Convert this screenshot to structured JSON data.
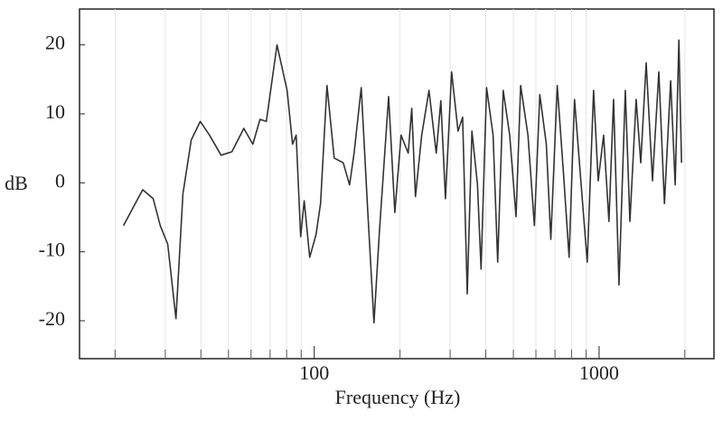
{
  "chart_data": {
    "type": "line",
    "x_label": "Frequency (Hz)",
    "y_label": "dB",
    "xscale": "log",
    "xlim": [
      15,
      2530
    ],
    "ylim": [
      -25.5,
      25.2
    ],
    "xticks": [
      100,
      1000
    ],
    "xminorticks": [
      20,
      30,
      40,
      50,
      60,
      70,
      80,
      90,
      200,
      300,
      400,
      500,
      600,
      700,
      800,
      900,
      2000
    ],
    "yticks": [
      -20,
      -10,
      0,
      10,
      20
    ],
    "series": [
      {
        "color": "#333333",
        "x": [
          21.4,
          25,
          27.2,
          28.8,
          30.6,
          32.7,
          34.6,
          37,
          39.8,
          42.9,
          47.1,
          51.4,
          56.6,
          60.9,
          64.5,
          67.9,
          74,
          80.3,
          83.9,
          86.4,
          89.6,
          92.2,
          96.4,
          101.5,
          105.2,
          110.8,
          117.5,
          126.4,
          133,
          138,
          146.2,
          153.9,
          162,
          169.5,
          182.4,
          191.8,
          201.8,
          213.8,
          220,
          226.6,
          238.4,
          252.8,
          268,
          278.3,
          288.8,
          303.5,
          319.7,
          331.9,
          344.5,
          357.7,
          374,
          385.2,
          402.8,
          424.4,
          440.6,
          460.7,
          485.3,
          511,
          530.5,
          562.6,
          592.6,
          619.3,
          652.4,
          677,
          712.8,
          750.6,
          784.5,
          819.8,
          862.8,
          908.4,
          956.3,
          992.7,
          1037,
          1083,
          1124,
          1174,
          1236,
          1283,
          1349,
          1400,
          1463,
          1540,
          1620,
          1695,
          1783,
          1850,
          1905,
          1947
        ],
        "values": [
          -6.2,
          -1,
          -2.3,
          -6.2,
          -8.9,
          -19.7,
          -1.6,
          6.2,
          8.9,
          6.9,
          4,
          4.5,
          7.9,
          5.6,
          9.2,
          8.9,
          20,
          13.4,
          5.6,
          6.9,
          -7.8,
          -2.6,
          -10.8,
          -7.5,
          -3,
          14.1,
          3.6,
          2.9,
          -0.3,
          4.3,
          13.8,
          -3.6,
          -20.3,
          -6.9,
          12.5,
          -4.3,
          6.9,
          4.3,
          10.8,
          -2,
          6.9,
          13.4,
          4.3,
          11.9,
          -2.3,
          16.1,
          7.5,
          9.5,
          -16.1,
          7.5,
          -0.2,
          -12.5,
          13.8,
          6.9,
          -11.5,
          13.4,
          6.9,
          -4.9,
          14.1,
          6.9,
          -6.2,
          12.8,
          5.6,
          -8.2,
          14.1,
          1,
          -10.8,
          12.1,
          0.3,
          -11.5,
          13.4,
          0.3,
          6.9,
          -5.6,
          12.1,
          -14.8,
          13.4,
          -5.6,
          12.1,
          2.9,
          17.4,
          0.3,
          16.1,
          -3,
          14.8,
          -0.3,
          20.7,
          2.9
        ]
      }
    ]
  }
}
